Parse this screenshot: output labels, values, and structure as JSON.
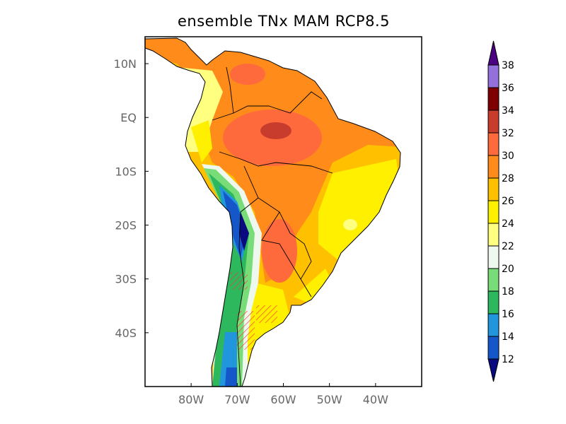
{
  "title": "ensemble TNx MAM RCP8.5",
  "map": {
    "region": "South America",
    "lon_range": [
      -90,
      -30
    ],
    "lat_range": [
      -50,
      15
    ],
    "lon_ticks": [
      {
        "lon": -80,
        "label": "80W"
      },
      {
        "lon": -70,
        "label": "70W"
      },
      {
        "lon": -60,
        "label": "60W"
      },
      {
        "lon": -50,
        "label": "50W"
      },
      {
        "lon": -40,
        "label": "40W"
      }
    ],
    "lat_ticks": [
      {
        "lat": 10,
        "label": "10N"
      },
      {
        "lat": 0,
        "label": "EQ"
      },
      {
        "lat": -10,
        "label": "10S"
      },
      {
        "lat": -20,
        "label": "20S"
      },
      {
        "lat": -30,
        "label": "30S"
      },
      {
        "lat": -40,
        "label": "40S"
      }
    ]
  },
  "colorbar": {
    "levels": [
      "12",
      "14",
      "16",
      "18",
      "20",
      "22",
      "24",
      "26",
      "28",
      "30",
      "32",
      "34",
      "36",
      "38"
    ],
    "colors": [
      "#0a0a80",
      "#1557c8",
      "#2196dc",
      "#2eb85e",
      "#78dc78",
      "#eef8ee",
      "#ffff80",
      "#fff000",
      "#ffc000",
      "#ff8c1a",
      "#ff6a3d",
      "#c83c2d",
      "#7f0000",
      "#9370db",
      "#4b0082"
    ]
  }
}
